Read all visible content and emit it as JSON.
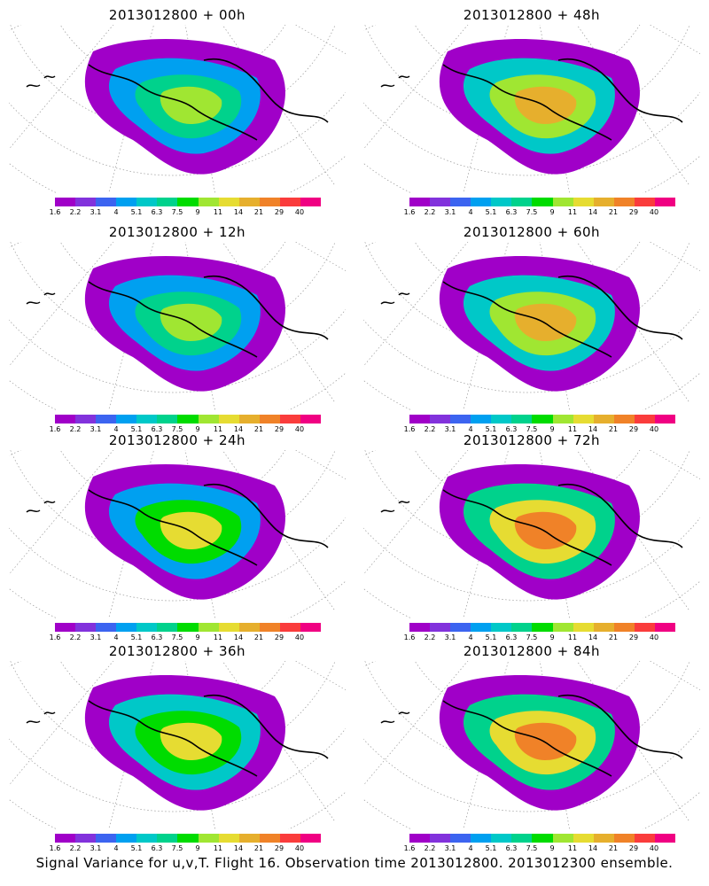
{
  "panels": [
    {
      "title": "2013012800  + 00h"
    },
    {
      "title": "2013012800  + 48h"
    },
    {
      "title": "2013012800  + 12h"
    },
    {
      "title": "2013012800  + 60h"
    },
    {
      "title": "2013012800  + 24h"
    },
    {
      "title": "2013012800  + 72h"
    },
    {
      "title": "2013012800  + 36h"
    },
    {
      "title": "2013012800  + 84h"
    }
  ],
  "colorbar": {
    "ticks": [
      "1.6",
      "2.2",
      "3.1",
      "4",
      "5.1",
      "6.3",
      "7.5",
      "9",
      "11",
      "14",
      "21",
      "29",
      "40"
    ],
    "colors": [
      "#a000c8",
      "#8232dc",
      "#3c64f0",
      "#00a0f0",
      "#00c8c8",
      "#00d28c",
      "#00dc00",
      "#a0e632",
      "#e6dc32",
      "#e6af2d",
      "#f08228",
      "#fa3c3c",
      "#f00082"
    ]
  },
  "footer": "Signal Variance for u,v,T. Flight 16. Observation time 2013012800. 2013012300 ensemble."
}
